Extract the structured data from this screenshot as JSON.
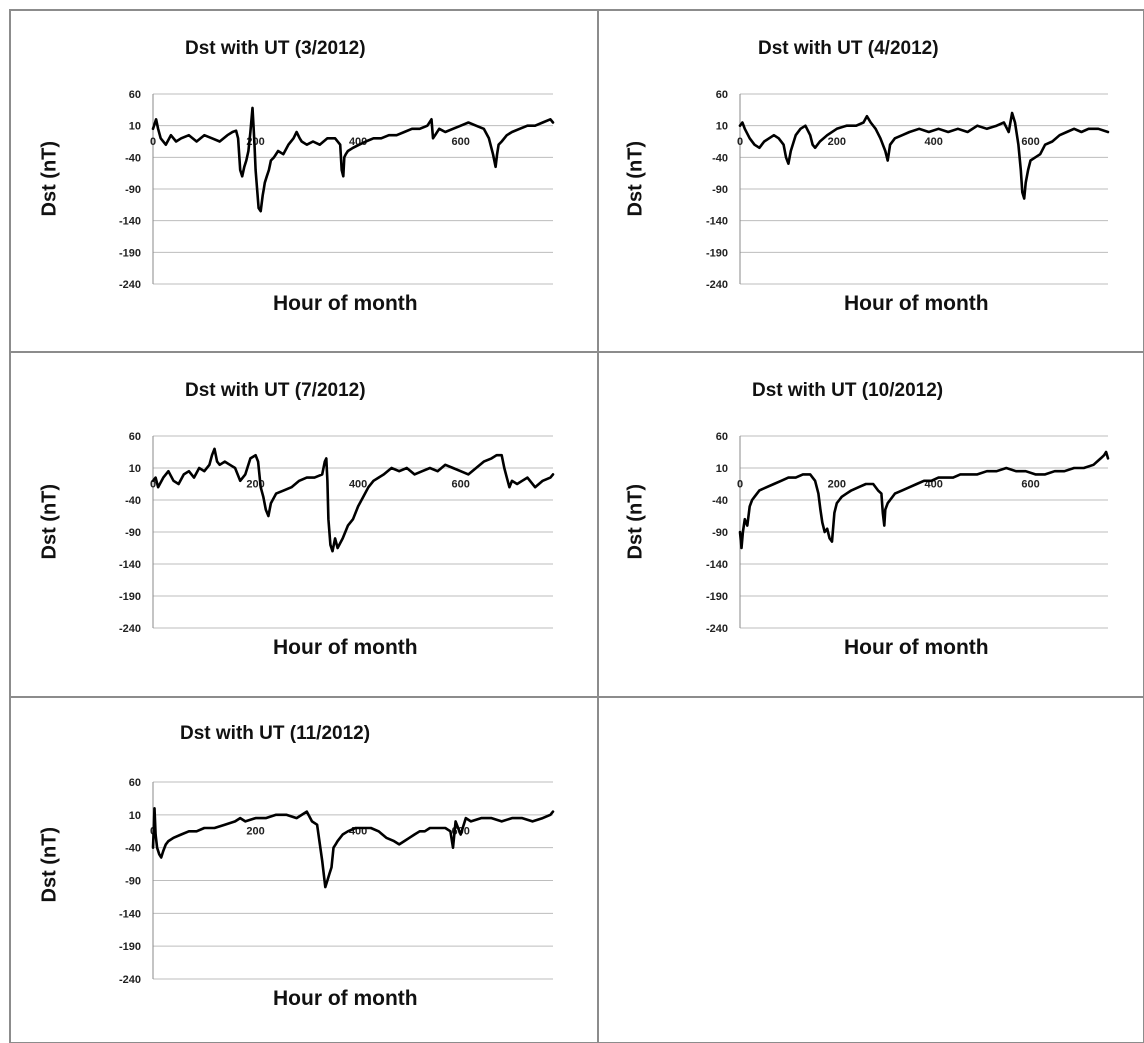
{
  "chart_data": [
    {
      "type": "line",
      "title": "Dst with UT (3/2012)",
      "xlabel": "Hour of month",
      "ylabel": "Dst (nT)",
      "ylim": [
        -240,
        60
      ],
      "xlim": [
        0,
        780
      ],
      "yticks": [
        "60",
        "10",
        "-40",
        "-90",
        "-140",
        "-190",
        "-240"
      ],
      "xticks": [
        "0",
        "200",
        "400",
        "600"
      ],
      "grid": true,
      "series": [
        {
          "x": [
            0,
            6,
            10,
            15,
            25,
            35,
            45,
            55,
            70,
            85,
            100,
            115,
            130,
            145,
            155,
            162,
            166,
            170,
            174,
            178,
            182,
            186,
            190,
            194,
            196,
            198,
            200,
            202,
            206,
            210,
            214,
            216,
            218,
            222,
            226,
            230,
            236,
            244,
            254,
            264,
            274,
            280,
            286,
            290,
            300,
            312,
            325,
            340,
            355,
            365,
            368,
            371,
            373,
            376,
            380,
            390,
            402,
            415,
            430,
            445,
            460,
            475,
            490,
            505,
            520,
            535,
            543,
            546,
            550,
            558,
            570,
            585,
            600,
            615,
            630,
            645,
            655,
            663,
            668,
            671,
            674,
            680,
            690,
            700,
            715,
            730,
            745,
            760,
            775,
            780
          ],
          "y": [
            5,
            20,
            5,
            -10,
            -20,
            -5,
            -15,
            -10,
            -5,
            -15,
            -5,
            -10,
            -15,
            -5,
            0,
            2,
            -10,
            -60,
            -70,
            -55,
            -45,
            -30,
            0,
            38,
            10,
            -20,
            -60,
            -80,
            -120,
            -125,
            -100,
            -90,
            -80,
            -70,
            -60,
            -45,
            -40,
            -30,
            -35,
            -20,
            -10,
            0,
            -10,
            -15,
            -20,
            -15,
            -20,
            -10,
            -10,
            -20,
            -60,
            -70,
            -40,
            -35,
            -30,
            -25,
            -20,
            -15,
            -10,
            -10,
            -5,
            -5,
            0,
            5,
            5,
            10,
            20,
            -10,
            -5,
            5,
            0,
            5,
            10,
            15,
            10,
            5,
            -10,
            -35,
            -55,
            -35,
            -20,
            -15,
            -5,
            0,
            5,
            10,
            10,
            15,
            20,
            15
          ]
        }
      ]
    },
    {
      "type": "line",
      "title": "Dst with UT (4/2012)",
      "xlabel": "Hour of month",
      "ylabel": "Dst (nT)",
      "ylim": [
        -240,
        60
      ],
      "xlim": [
        0,
        760
      ],
      "yticks": [
        "60",
        "10",
        "-40",
        "-90",
        "-140",
        "-190",
        "-240"
      ],
      "xticks": [
        "0",
        "200",
        "400",
        "600"
      ],
      "grid": true,
      "series": [
        {
          "x": [
            0,
            5,
            10,
            20,
            30,
            40,
            50,
            60,
            70,
            80,
            90,
            95,
            100,
            105,
            115,
            125,
            135,
            145,
            150,
            155,
            165,
            180,
            200,
            220,
            240,
            255,
            262,
            270,
            280,
            290,
            300,
            305,
            310,
            320,
            335,
            350,
            370,
            390,
            410,
            430,
            450,
            470,
            490,
            510,
            530,
            545,
            555,
            562,
            568,
            575,
            580,
            583,
            587,
            590,
            595,
            600,
            610,
            620,
            630,
            645,
            660,
            675,
            690,
            705,
            720,
            740,
            760
          ],
          "y": [
            10,
            15,
            5,
            -10,
            -20,
            -25,
            -15,
            -10,
            -5,
            -10,
            -20,
            -40,
            -50,
            -30,
            -5,
            5,
            10,
            -5,
            -20,
            -25,
            -15,
            -5,
            5,
            10,
            10,
            15,
            25,
            15,
            5,
            -10,
            -30,
            -45,
            -20,
            -10,
            -5,
            0,
            5,
            0,
            5,
            0,
            5,
            0,
            10,
            5,
            10,
            15,
            0,
            30,
            15,
            -20,
            -60,
            -95,
            -105,
            -80,
            -60,
            -45,
            -40,
            -35,
            -20,
            -15,
            -5,
            0,
            5,
            0,
            5,
            5,
            0
          ]
        }
      ]
    },
    {
      "type": "line",
      "title": "Dst with UT (7/2012)",
      "xlabel": "Hour of month",
      "ylabel": "Dst (nT)",
      "ylim": [
        -240,
        60
      ],
      "xlim": [
        0,
        780
      ],
      "yticks": [
        "60",
        "10",
        "-40",
        "-90",
        "-140",
        "-190",
        "-240"
      ],
      "xticks": [
        "0",
        "200",
        "400",
        "600"
      ],
      "grid": true,
      "series": [
        {
          "x": [
            0,
            5,
            10,
            20,
            30,
            40,
            50,
            60,
            70,
            80,
            90,
            100,
            110,
            115,
            120,
            125,
            130,
            140,
            150,
            160,
            170,
            180,
            190,
            200,
            205,
            210,
            215,
            220,
            225,
            230,
            240,
            255,
            270,
            285,
            300,
            315,
            330,
            335,
            338,
            340,
            342,
            346,
            350,
            355,
            360,
            370,
            380,
            390,
            400,
            410,
            420,
            430,
            440,
            450,
            465,
            480,
            495,
            510,
            525,
            540,
            555,
            570,
            585,
            600,
            615,
            630,
            645,
            660,
            670,
            680,
            685,
            690,
            695,
            700,
            710,
            720,
            730,
            745,
            760,
            775,
            780
          ],
          "y": [
            -10,
            -5,
            -20,
            -5,
            5,
            -10,
            -15,
            0,
            5,
            -5,
            10,
            5,
            15,
            30,
            40,
            20,
            15,
            20,
            15,
            10,
            -10,
            0,
            25,
            30,
            20,
            -20,
            -35,
            -55,
            -65,
            -45,
            -30,
            -25,
            -20,
            -10,
            -5,
            -5,
            0,
            20,
            25,
            -10,
            -70,
            -110,
            -120,
            -100,
            -115,
            -100,
            -80,
            -70,
            -50,
            -35,
            -20,
            -10,
            -5,
            0,
            10,
            5,
            10,
            0,
            5,
            10,
            5,
            15,
            10,
            5,
            0,
            10,
            20,
            25,
            30,
            30,
            10,
            -5,
            -20,
            -10,
            -15,
            -10,
            -5,
            -20,
            -10,
            -5,
            0
          ]
        }
      ]
    },
    {
      "type": "line",
      "title": "Dst with UT (10/2012)",
      "xlabel": "Hour of month",
      "ylabel": "Dst (nT)",
      "ylim": [
        -240,
        60
      ],
      "xlim": [
        0,
        760
      ],
      "yticks": [
        "60",
        "10",
        "-40",
        "-90",
        "-140",
        "-190",
        "-240"
      ],
      "xticks": [
        "0",
        "200",
        "400",
        "600"
      ],
      "grid": true,
      "series": [
        {
          "x": [
            0,
            3,
            6,
            10,
            15,
            20,
            25,
            30,
            40,
            55,
            70,
            85,
            100,
            115,
            130,
            145,
            155,
            162,
            166,
            170,
            175,
            180,
            185,
            190,
            195,
            200,
            205,
            210,
            220,
            230,
            245,
            260,
            275,
            285,
            292,
            295,
            298,
            300,
            305,
            310,
            320,
            335,
            350,
            365,
            380,
            395,
            410,
            425,
            440,
            455,
            470,
            490,
            510,
            530,
            550,
            570,
            590,
            610,
            630,
            650,
            670,
            690,
            710,
            730,
            745,
            752,
            756,
            760
          ],
          "y": [
            -90,
            -115,
            -90,
            -70,
            -80,
            -50,
            -40,
            -35,
            -25,
            -20,
            -15,
            -10,
            -5,
            -5,
            0,
            0,
            -10,
            -30,
            -55,
            -75,
            -90,
            -85,
            -100,
            -105,
            -60,
            -45,
            -40,
            -35,
            -30,
            -25,
            -20,
            -15,
            -15,
            -25,
            -30,
            -60,
            -80,
            -55,
            -45,
            -40,
            -30,
            -25,
            -20,
            -15,
            -10,
            -10,
            -5,
            -5,
            -5,
            0,
            0,
            0,
            5,
            5,
            10,
            5,
            5,
            0,
            0,
            5,
            5,
            10,
            10,
            15,
            25,
            30,
            35,
            25
          ]
        }
      ]
    },
    {
      "type": "line",
      "title": "Dst with UT (11/2012)",
      "xlabel": "Hour of month",
      "ylabel": "Dst (nT)",
      "ylim": [
        -240,
        60
      ],
      "xlim": [
        0,
        780
      ],
      "yticks": [
        "60",
        "10",
        "-40",
        "-90",
        "-140",
        "-190",
        "-240"
      ],
      "xticks": [
        "0",
        "200",
        "400",
        "600"
      ],
      "grid": true,
      "series": [
        {
          "x": [
            0,
            3,
            5,
            8,
            12,
            16,
            20,
            25,
            30,
            40,
            55,
            70,
            85,
            100,
            120,
            140,
            160,
            170,
            180,
            200,
            220,
            240,
            260,
            280,
            300,
            310,
            320,
            330,
            336,
            340,
            344,
            348,
            352,
            356,
            360,
            370,
            380,
            395,
            410,
            425,
            440,
            455,
            470,
            480,
            490,
            500,
            510,
            520,
            530,
            540,
            555,
            570,
            580,
            585,
            590,
            595,
            600,
            610,
            620,
            640,
            660,
            680,
            700,
            720,
            740,
            760,
            775,
            780
          ],
          "y": [
            -40,
            20,
            -20,
            -40,
            -50,
            -55,
            -45,
            -35,
            -30,
            -25,
            -20,
            -15,
            -15,
            -10,
            -10,
            -5,
            0,
            5,
            0,
            5,
            5,
            10,
            10,
            5,
            15,
            0,
            -5,
            -60,
            -100,
            -90,
            -80,
            -70,
            -40,
            -35,
            -30,
            -20,
            -15,
            -10,
            -10,
            -10,
            -15,
            -25,
            -30,
            -35,
            -30,
            -25,
            -20,
            -15,
            -15,
            -10,
            -10,
            -10,
            -15,
            -40,
            0,
            -10,
            -20,
            5,
            0,
            5,
            5,
            0,
            5,
            5,
            0,
            5,
            10,
            15
          ]
        }
      ]
    }
  ]
}
